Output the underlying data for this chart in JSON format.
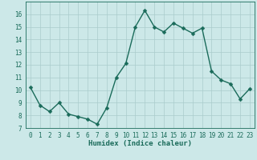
{
  "x": [
    0,
    1,
    2,
    3,
    4,
    5,
    6,
    7,
    8,
    9,
    10,
    11,
    12,
    13,
    14,
    15,
    16,
    17,
    18,
    19,
    20,
    21,
    22,
    23
  ],
  "y": [
    10.2,
    8.8,
    8.3,
    9.0,
    8.1,
    7.9,
    7.7,
    7.3,
    8.6,
    11.0,
    12.1,
    15.0,
    16.3,
    15.0,
    14.6,
    15.3,
    14.9,
    14.5,
    14.9,
    11.5,
    10.8,
    10.5,
    9.3,
    10.1
  ],
  "line_color": "#1a6b5a",
  "marker_color": "#1a6b5a",
  "bg_color": "#cce8e8",
  "grid_color": "#aacccc",
  "xlabel": "Humidex (Indice chaleur)",
  "ylim": [
    7,
    17
  ],
  "xlim": [
    -0.5,
    23.5
  ],
  "yticks": [
    7,
    8,
    9,
    10,
    11,
    12,
    13,
    14,
    15,
    16
  ],
  "xticks": [
    0,
    1,
    2,
    3,
    4,
    5,
    6,
    7,
    8,
    9,
    10,
    11,
    12,
    13,
    14,
    15,
    16,
    17,
    18,
    19,
    20,
    21,
    22,
    23
  ],
  "tick_fontsize": 5.5,
  "label_fontsize": 6.5,
  "marker_size": 2.5,
  "line_width": 1.0
}
